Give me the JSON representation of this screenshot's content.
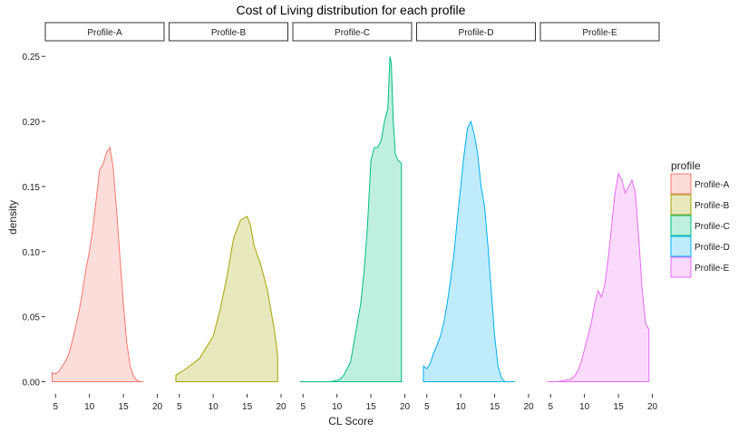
{
  "chart_data": {
    "type": "area",
    "title": "Cost of Living distribution for each profile",
    "xlabel": "CL Score",
    "ylabel": "density",
    "xlim": [
      3.5,
      21
    ],
    "ylim": [
      -0.008,
      0.262
    ],
    "x_ticks": [
      5,
      10,
      15,
      20
    ],
    "y_ticks": [
      0.0,
      0.05,
      0.1,
      0.15,
      0.2,
      0.25
    ],
    "y_tick_labels": [
      "0.00",
      "0.05",
      "0.10",
      "0.15",
      "0.20",
      "0.25"
    ],
    "facet_by": "profile",
    "grid": false,
    "legend": {
      "title": "profile",
      "position": "right"
    },
    "series": [
      {
        "name": "Profile-A",
        "fill": "#F8766D",
        "x": [
          4.5,
          4.5,
          5.0,
          5.5,
          6.0,
          6.5,
          7.0,
          7.5,
          8.0,
          8.5,
          9.0,
          9.5,
          10.0,
          10.5,
          11.0,
          11.5,
          12.0,
          12.5,
          13.0,
          13.5,
          14.0,
          14.5,
          15.0,
          15.5,
          16.0,
          16.5,
          17.0,
          17.5,
          18.0
        ],
        "y": [
          0.0,
          0.007,
          0.006,
          0.008,
          0.012,
          0.016,
          0.022,
          0.032,
          0.043,
          0.055,
          0.07,
          0.087,
          0.1,
          0.118,
          0.14,
          0.163,
          0.167,
          0.176,
          0.18,
          0.165,
          0.132,
          0.095,
          0.06,
          0.03,
          0.012,
          0.004,
          0.001,
          0.0,
          0.0
        ]
      },
      {
        "name": "Profile-B",
        "fill": "#A3A500",
        "x": [
          4.5,
          4.5,
          6.0,
          8.0,
          10.0,
          11.0,
          12.0,
          13.0,
          14.0,
          15.0,
          15.5,
          16.0,
          17.0,
          18.0,
          19.0,
          19.5,
          19.5
        ],
        "y": [
          0.0,
          0.005,
          0.01,
          0.018,
          0.035,
          0.055,
          0.08,
          0.11,
          0.124,
          0.127,
          0.12,
          0.105,
          0.09,
          0.07,
          0.04,
          0.02,
          0.0
        ]
      },
      {
        "name": "Profile-C",
        "fill": "#00BF7D",
        "x": [
          4.5,
          9.0,
          10.0,
          10.5,
          11.0,
          11.5,
          12.0,
          12.5,
          13.0,
          13.5,
          14.0,
          14.5,
          15.0,
          15.5,
          16.0,
          16.5,
          17.0,
          17.5,
          17.8,
          18.0,
          18.3,
          18.6,
          19.0,
          19.5,
          19.5
        ],
        "y": [
          0.0,
          0.0,
          0.001,
          0.002,
          0.005,
          0.01,
          0.015,
          0.03,
          0.045,
          0.06,
          0.085,
          0.12,
          0.17,
          0.18,
          0.18,
          0.185,
          0.2,
          0.21,
          0.25,
          0.245,
          0.2,
          0.175,
          0.17,
          0.168,
          0.0
        ]
      },
      {
        "name": "Profile-D",
        "fill": "#00B0F6",
        "x": [
          4.5,
          4.5,
          5.0,
          5.5,
          6.0,
          6.5,
          7.0,
          7.5,
          8.0,
          8.5,
          9.0,
          9.5,
          10.0,
          10.5,
          11.0,
          11.5,
          12.0,
          12.5,
          13.0,
          13.5,
          14.0,
          14.5,
          15.0,
          15.5,
          16.0,
          16.5,
          17.0,
          17.5,
          18.0
        ],
        "y": [
          0.0,
          0.012,
          0.01,
          0.014,
          0.022,
          0.028,
          0.035,
          0.045,
          0.06,
          0.078,
          0.098,
          0.125,
          0.15,
          0.175,
          0.195,
          0.2,
          0.19,
          0.175,
          0.15,
          0.135,
          0.105,
          0.07,
          0.035,
          0.012,
          0.003,
          0.0,
          0.0,
          0.0,
          0.0
        ]
      },
      {
        "name": "Profile-E",
        "fill": "#E76BF3",
        "x": [
          4.5,
          6.0,
          7.0,
          8.0,
          8.5,
          9.0,
          9.5,
          10.0,
          10.5,
          11.0,
          11.5,
          12.0,
          12.5,
          13.0,
          13.5,
          14.0,
          14.5,
          15.0,
          15.5,
          16.0,
          16.5,
          17.0,
          17.5,
          18.0,
          18.5,
          19.0,
          19.5,
          19.5
        ],
        "y": [
          0.0,
          0.0,
          0.001,
          0.002,
          0.004,
          0.008,
          0.015,
          0.025,
          0.035,
          0.045,
          0.06,
          0.07,
          0.065,
          0.075,
          0.095,
          0.12,
          0.145,
          0.16,
          0.155,
          0.145,
          0.15,
          0.155,
          0.145,
          0.11,
          0.07,
          0.045,
          0.04,
          0.0
        ]
      }
    ]
  }
}
